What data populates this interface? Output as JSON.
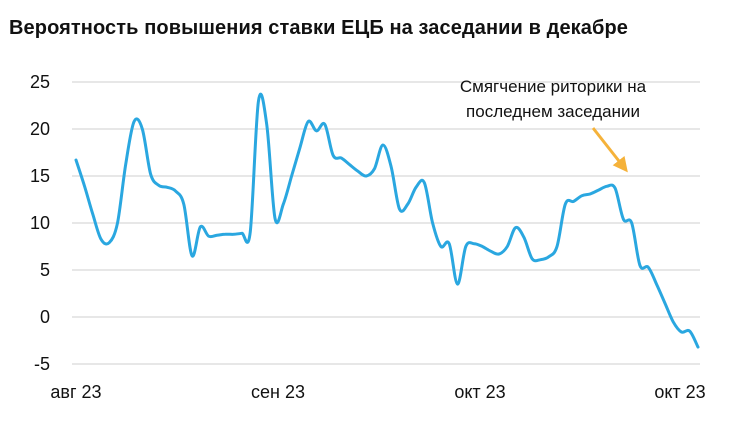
{
  "title": "Вероятность повышения ставки ЕЦБ на заседании в декабре",
  "chart_data": {
    "type": "line",
    "title": "Вероятность повышения ставки ЕЦБ на заседании в декабре",
    "xlabel": "",
    "ylabel": "",
    "ylim": [
      -5,
      25
    ],
    "yticks": [
      "25",
      "20",
      "15",
      "10",
      "5",
      "0",
      "-5"
    ],
    "x_tick_labels": [
      "авг 23",
      "сен 23",
      "окт 23",
      "окт 23"
    ],
    "grid": true,
    "series_color": "#2aa7e0",
    "annotation_color": "#f5b23a",
    "annotation": [
      "Смягчение риторики на",
      "последнем заседании"
    ],
    "series": [
      {
        "values": [
          16.7,
          14.0,
          11.0,
          8.3,
          7.9,
          10.0,
          16.3,
          20.8,
          20.0,
          15.2,
          14.0,
          13.8,
          13.4,
          12.0,
          6.5,
          9.6,
          8.6,
          8.7,
          8.8,
          8.8,
          8.9,
          9.0,
          23.0,
          20.5,
          10.5,
          12.0,
          15.0,
          18.0,
          20.8,
          19.8,
          20.5,
          17.2,
          16.9,
          16.2,
          15.5,
          15.0,
          15.8,
          18.3,
          16.0,
          11.5,
          12.0,
          13.8,
          14.3,
          10.0,
          7.5,
          7.8,
          3.5,
          7.5,
          7.8,
          7.5,
          7.0,
          6.7,
          7.5,
          9.5,
          8.5,
          6.2,
          6.1,
          6.4,
          7.5,
          12.0,
          12.3,
          12.9,
          13.1,
          13.5,
          13.9,
          13.7,
          10.4,
          10.0,
          5.5,
          5.3,
          3.5,
          1.5,
          -0.5,
          -1.6,
          -1.5,
          -3.2
        ]
      }
    ]
  }
}
